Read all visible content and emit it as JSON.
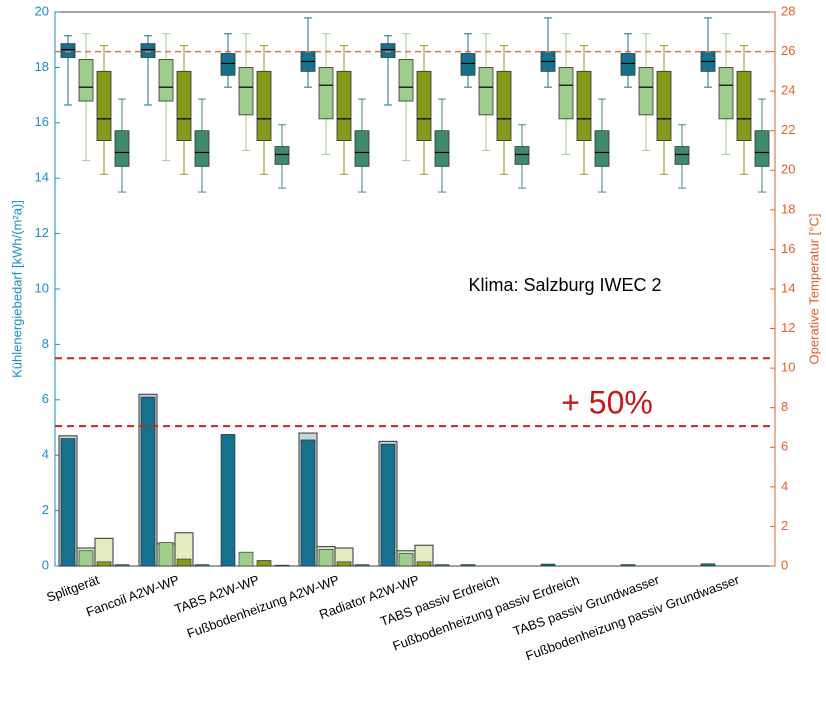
{
  "chart_data": {
    "type": "bar-box",
    "ylabel": "Kühlenergiebedarf [kWh/(m²a)]",
    "y2label": "Operative Temperatur [°C]",
    "annotations": [
      "Klima: Salzburg IWEC 2",
      "+ 50%"
    ],
    "categories": [
      "Splitgerät",
      "Fancoil A2W-WP",
      "TABS A2W-WP",
      "Fußbodenheizung A2W-WP",
      "Radiator A2W-WP",
      "TABS passiv Erdreich",
      "Fußbodenheizung passiv Erdreich",
      "TABS passiv Grundwasser",
      "Fußbodenheizung passiv Grundwasser"
    ],
    "ylim": [
      0,
      20
    ],
    "yticks": [
      0,
      2,
      4,
      6,
      8,
      10,
      12,
      14,
      16,
      18,
      20
    ],
    "y2lim": [
      0,
      28
    ],
    "y2ticks": [
      0,
      2,
      4,
      6,
      8,
      10,
      12,
      14,
      16,
      18,
      20,
      22,
      24,
      26,
      28
    ],
    "reference_lines": [
      7.5,
      5.05
    ],
    "y2_reference_lines": [
      26
    ],
    "series": [
      {
        "color": "#16728c",
        "outline_color": "#c9d6dc",
        "values": [
          4.6,
          6.1,
          4.75,
          4.55,
          4.4,
          0.05,
          0.07,
          0.05,
          0.08
        ],
        "outline_values": [
          4.7,
          6.2,
          null,
          4.8,
          4.5,
          null,
          null,
          null,
          null
        ]
      },
      {
        "color": "#9fcd8c",
        "outline_color": "#d5e8c8",
        "values": [
          0.55,
          0.85,
          0.5,
          0.6,
          0.45,
          0,
          0,
          0,
          0
        ],
        "outline_values": [
          0.65,
          0.8,
          null,
          0.7,
          0.55,
          null,
          null,
          null,
          null
        ]
      },
      {
        "color": "#87991a",
        "outline_color": "#e4ebc0",
        "values": [
          0.15,
          0.25,
          0.2,
          0.15,
          0.15,
          0,
          0,
          0,
          0
        ],
        "outline_values": [
          1.0,
          1.2,
          null,
          0.65,
          0.75,
          null,
          null,
          null,
          null
        ]
      },
      {
        "color": "#3f8a6c",
        "outline_color": "#b5d1c5",
        "values": [
          0.05,
          0.05,
          0.03,
          0.05,
          0.05,
          0,
          0,
          0,
          0
        ],
        "outline_values": [
          null,
          null,
          null,
          null,
          null,
          null,
          null,
          null,
          null
        ]
      }
    ],
    "boxes": [
      {
        "color": "#16728c",
        "values": [
          [
            23.3,
            25.7,
            26.1,
            26.4,
            26.8
          ],
          [
            23.3,
            25.7,
            26.1,
            26.4,
            26.8
          ],
          [
            24.2,
            24.8,
            25.4,
            25.9,
            26.9
          ],
          [
            24.2,
            25.0,
            25.5,
            26.0,
            27.7
          ],
          [
            23.3,
            25.7,
            26.1,
            26.4,
            26.8
          ],
          [
            24.2,
            24.8,
            25.4,
            25.9,
            26.9
          ],
          [
            24.2,
            25.0,
            25.5,
            26.0,
            27.7
          ],
          [
            24.2,
            24.8,
            25.4,
            25.9,
            26.9
          ],
          [
            24.2,
            25.0,
            25.5,
            26.0,
            27.7
          ]
        ]
      },
      {
        "color": "#9fcd8c",
        "values": [
          [
            20.5,
            23.5,
            24.2,
            25.6,
            26.9
          ],
          [
            20.5,
            23.5,
            24.2,
            25.6,
            26.9
          ],
          [
            21.0,
            22.8,
            24.2,
            25.2,
            26.9
          ],
          [
            20.8,
            22.6,
            24.3,
            25.2,
            26.9
          ],
          [
            20.5,
            23.5,
            24.2,
            25.6,
            26.9
          ],
          [
            21.0,
            22.8,
            24.2,
            25.2,
            26.9
          ],
          [
            20.8,
            22.6,
            24.3,
            25.2,
            26.9
          ],
          [
            21.0,
            22.8,
            24.2,
            25.2,
            26.9
          ],
          [
            20.8,
            22.6,
            24.3,
            25.2,
            26.9
          ]
        ]
      },
      {
        "color": "#87991a",
        "values": [
          [
            19.8,
            21.5,
            22.6,
            25.0,
            26.3
          ],
          [
            19.8,
            21.5,
            22.6,
            25.0,
            26.3
          ],
          [
            19.8,
            21.5,
            22.6,
            25.0,
            26.3
          ],
          [
            19.8,
            21.5,
            22.6,
            25.0,
            26.3
          ],
          [
            19.8,
            21.5,
            22.6,
            25.0,
            26.3
          ],
          [
            19.8,
            21.5,
            22.6,
            25.0,
            26.3
          ],
          [
            19.8,
            21.5,
            22.6,
            25.0,
            26.3
          ],
          [
            19.8,
            21.5,
            22.6,
            25.0,
            26.3
          ],
          [
            19.8,
            21.5,
            22.6,
            25.0,
            26.3
          ]
        ]
      },
      {
        "color": "#3f8a6c",
        "values": [
          [
            18.9,
            20.2,
            20.9,
            22.0,
            23.6
          ],
          [
            18.9,
            20.2,
            20.9,
            22.0,
            23.6
          ],
          [
            19.1,
            20.3,
            20.8,
            21.2,
            22.3
          ],
          [
            18.9,
            20.2,
            20.9,
            22.0,
            23.6
          ],
          [
            18.9,
            20.2,
            20.9,
            22.0,
            23.6
          ],
          [
            19.1,
            20.3,
            20.8,
            21.2,
            22.3
          ],
          [
            18.9,
            20.2,
            20.9,
            22.0,
            23.6
          ],
          [
            19.1,
            20.3,
            20.8,
            21.2,
            22.3
          ],
          [
            18.9,
            20.2,
            20.9,
            22.0,
            23.6
          ]
        ]
      }
    ]
  }
}
